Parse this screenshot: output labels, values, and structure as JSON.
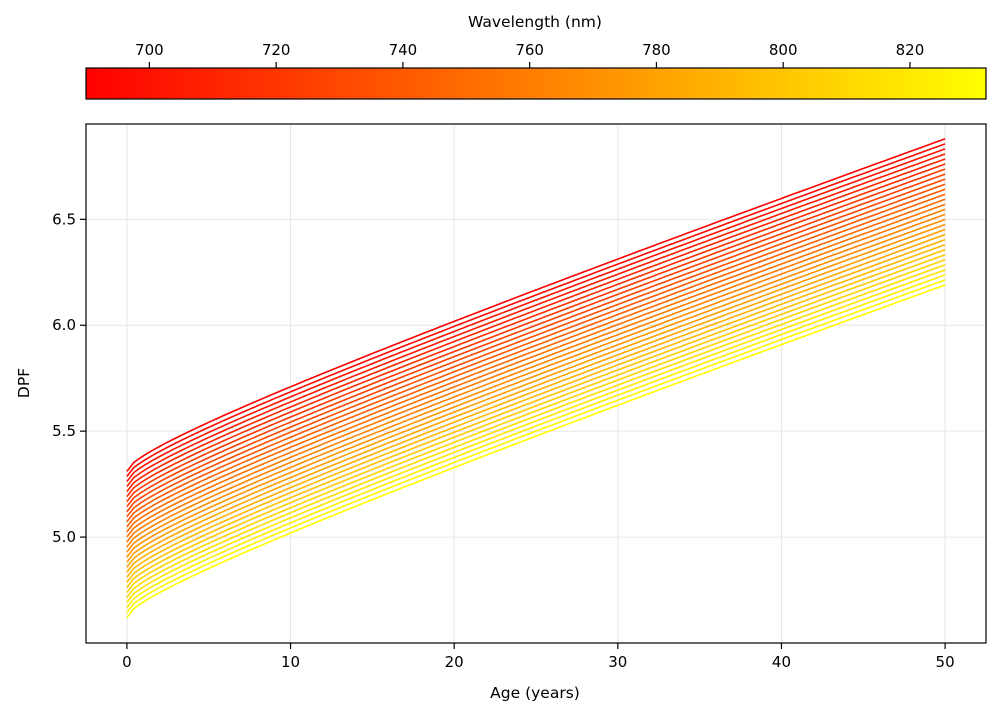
{
  "chart_data": {
    "type": "line",
    "xlabel": "Age (years)",
    "ylabel": "DPF",
    "xlim": [
      -2.5,
      52.5
    ],
    "ylim": [
      4.5,
      6.95
    ],
    "xticks": [
      0,
      10,
      20,
      30,
      40,
      50
    ],
    "yticks": [
      5.0,
      5.5,
      6.0,
      6.5
    ],
    "grid": true,
    "age_range": [
      0,
      50
    ],
    "colorbar": {
      "label": "Wavelength (nm)",
      "range": [
        690,
        832
      ],
      "ticks": [
        700,
        720,
        740,
        760,
        780,
        800,
        820
      ],
      "colormap": "autumn",
      "colors": [
        "#ff0000",
        "#ffff00"
      ],
      "placement": "top"
    },
    "series_summary": {
      "count": 30,
      "wavelength_start": 690,
      "wavelength_end": 832,
      "dpf_at_age_0": {
        "690": 5.31,
        "832": 4.62
      },
      "dpf_at_age_50": {
        "690": 6.88,
        "832": 6.19
      }
    }
  }
}
